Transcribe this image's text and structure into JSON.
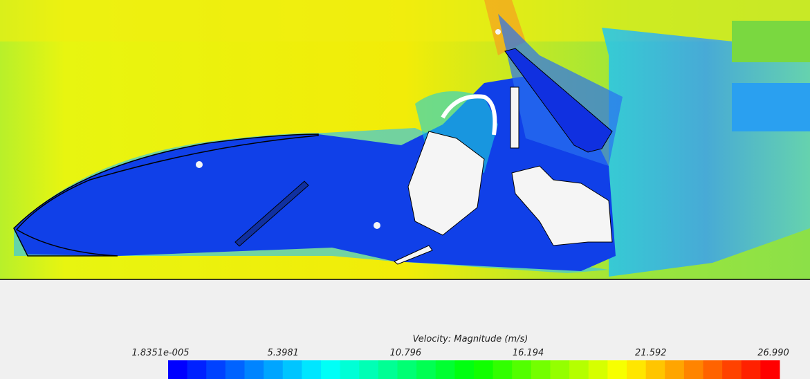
{
  "legend": {
    "title": "Velocity: Magnitude (m/s)",
    "ticks": [
      "1.8351e-005",
      "5.3981",
      "10.796",
      "16.194",
      "21.592",
      "26.990"
    ]
  }
}
